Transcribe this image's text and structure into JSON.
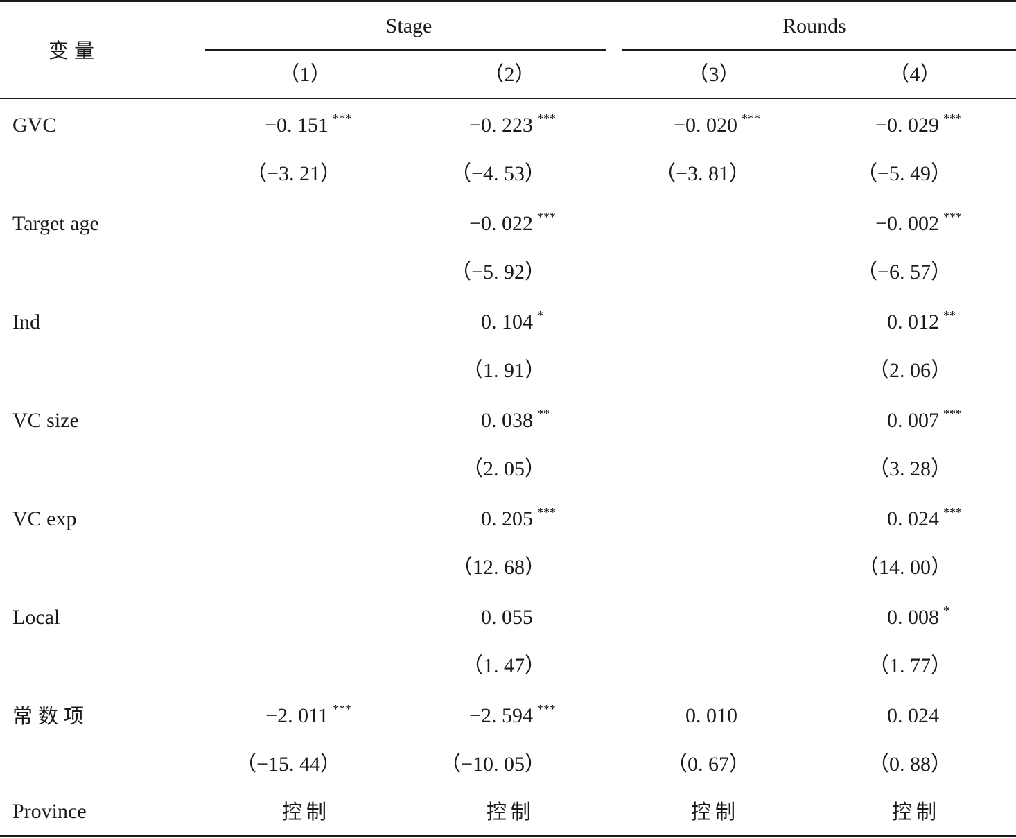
{
  "header": {
    "variable_label": "变量",
    "groups": [
      "Stage",
      "Rounds"
    ],
    "columns": [
      "（1）",
      "（2）",
      "（3）",
      "（4）"
    ]
  },
  "rows": [
    {
      "label": "GVC",
      "coef": [
        [
          "−0. 151",
          "***"
        ],
        [
          "−0. 223",
          "***"
        ],
        [
          "−0. 020",
          "***"
        ],
        [
          "−0. 029",
          "***"
        ]
      ],
      "t": [
        "（−3. 21）",
        "（−4. 53）",
        "（−3. 81）",
        "（−5. 49）"
      ]
    },
    {
      "label": "Target age",
      "coef": [
        [
          "",
          ""
        ],
        [
          "−0. 022",
          "***"
        ],
        [
          "",
          ""
        ],
        [
          "−0. 002",
          "***"
        ]
      ],
      "t": [
        "",
        "（−5. 92）",
        "",
        "（−6. 57）"
      ]
    },
    {
      "label": "Ind",
      "coef": [
        [
          "",
          ""
        ],
        [
          "0. 104",
          "*"
        ],
        [
          "",
          ""
        ],
        [
          "0. 012",
          "**"
        ]
      ],
      "t": [
        "",
        "（1. 91）",
        "",
        "（2. 06）"
      ]
    },
    {
      "label": "VC size",
      "coef": [
        [
          "",
          ""
        ],
        [
          "0. 038",
          "**"
        ],
        [
          "",
          ""
        ],
        [
          "0. 007",
          "***"
        ]
      ],
      "t": [
        "",
        "（2. 05）",
        "",
        "（3. 28）"
      ]
    },
    {
      "label": "VC exp",
      "coef": [
        [
          "",
          ""
        ],
        [
          "0. 205",
          "***"
        ],
        [
          "",
          ""
        ],
        [
          "0. 024",
          "***"
        ]
      ],
      "t": [
        "",
        "（12. 68）",
        "",
        "（14. 00）"
      ]
    },
    {
      "label": "Local",
      "coef": [
        [
          "",
          ""
        ],
        [
          "0. 055",
          ""
        ],
        [
          "",
          ""
        ],
        [
          "0. 008",
          "*"
        ]
      ],
      "t": [
        "",
        "（1. 47）",
        "",
        "（1. 77）"
      ]
    },
    {
      "label": "常数项",
      "coef": [
        [
          "−2. 011",
          "***"
        ],
        [
          "−2. 594",
          "***"
        ],
        [
          "0. 010",
          ""
        ],
        [
          "0. 024",
          ""
        ]
      ],
      "t": [
        "（−15. 44）",
        "（−10. 05）",
        "（0. 67）",
        "（0. 88）"
      ]
    }
  ],
  "province": {
    "label": "Province",
    "values": [
      "控制",
      "控制",
      "控制",
      "控制"
    ]
  }
}
